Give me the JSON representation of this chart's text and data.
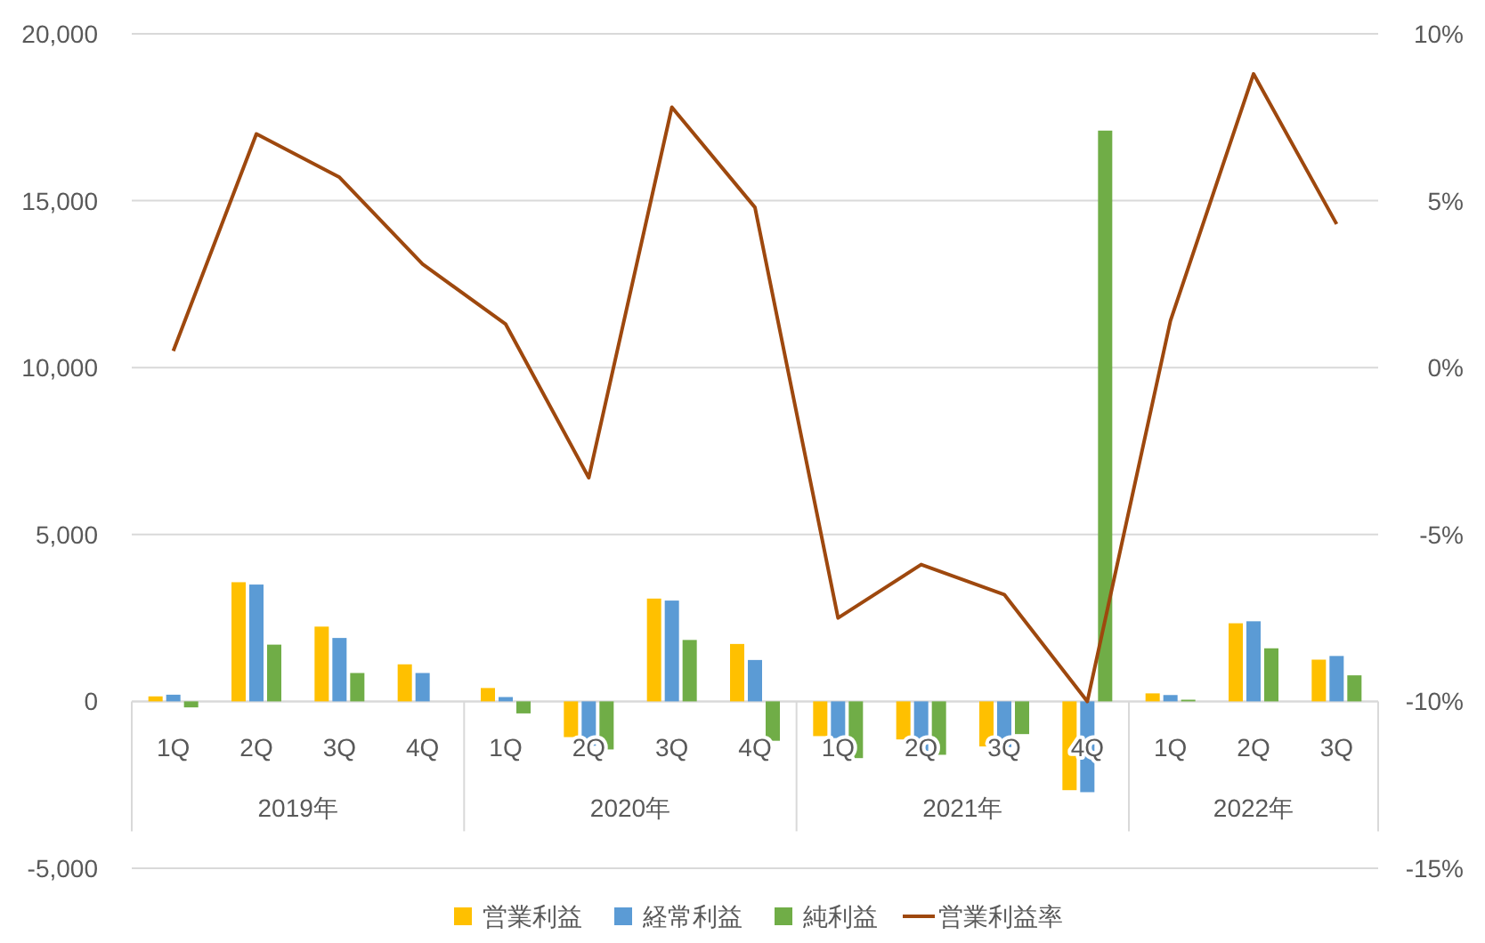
{
  "chart_data": {
    "type": "bar",
    "categories": [
      "1Q",
      "2Q",
      "3Q",
      "4Q",
      "1Q",
      "2Q",
      "3Q",
      "4Q",
      "1Q",
      "2Q",
      "3Q",
      "4Q",
      "1Q",
      "2Q",
      "3Q"
    ],
    "annotations": [
      "2019年",
      "2020年",
      "2021年",
      "2022年"
    ],
    "ylim": [
      -5000,
      20000
    ],
    "yticks": [
      {
        "value": -5000,
        "label": "-5,000"
      },
      0,
      {
        "value": 5000,
        "label": "5,000"
      },
      {
        "value": 10000,
        "label": "10,000"
      },
      {
        "value": 15000,
        "label": "15,000"
      },
      {
        "value": 20000,
        "label": "20,000"
      }
    ],
    "y2lim": [
      -15,
      10
    ],
    "y2ticks": [
      {
        "value": -15,
        "label": "-15%"
      },
      {
        "value": -10,
        "label": "-10%"
      },
      {
        "value": -5,
        "label": "-5%"
      },
      {
        "value": 0,
        "label": "0%"
      },
      {
        "value": 5,
        "label": "5%"
      },
      {
        "value": 10,
        "label": "10%"
      }
    ],
    "grid": "y",
    "legend": "bottom",
    "series": [
      {
        "name": "営業利益",
        "color": "#ffc000",
        "values": [
          150,
          3570,
          2240,
          1110,
          400,
          -1070,
          3080,
          1720,
          -1040,
          -1140,
          -1350,
          -2660,
          240,
          2340,
          1250
        ]
      },
      {
        "name": "経常利益",
        "color": "#5b9bd5",
        "values": [
          200,
          3500,
          1900,
          850,
          130,
          -1330,
          3020,
          1240,
          -1100,
          -1560,
          -1370,
          -2720,
          190,
          2400,
          1360
        ]
      },
      {
        "name": "純利益",
        "color": "#70ad47",
        "values": [
          -180,
          1700,
          850,
          null,
          -360,
          -1440,
          1840,
          -1180,
          -1700,
          -1600,
          -980,
          17100,
          50,
          1590,
          780
        ]
      },
      {
        "name": "営業利益率",
        "type": "line",
        "axis": "y2",
        "color": "#9e480e",
        "values": [
          0.5,
          7.0,
          5.7,
          3.1,
          1.3,
          -3.3,
          7.8,
          4.8,
          -7.5,
          -5.9,
          -6.8,
          -10.0,
          1.4,
          8.8,
          4.3
        ]
      }
    ]
  }
}
